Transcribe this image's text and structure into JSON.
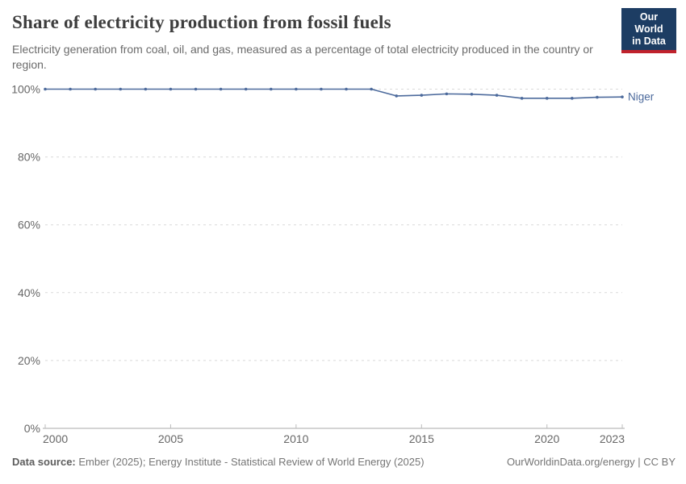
{
  "header": {
    "title": "Share of electricity production from fossil fuels",
    "subtitle": "Electricity generation from coal, oil, and gas, measured as a percentage of total electricity produced in the country or region.",
    "logo": {
      "line1": "Our World",
      "line2": "in Data",
      "bg_color": "#1d3d63",
      "bar_color": "#c0222c"
    }
  },
  "chart_data": {
    "type": "line",
    "title": "Share of electricity production from fossil fuels",
    "xlabel": "",
    "ylabel": "",
    "x": [
      2000,
      2001,
      2002,
      2003,
      2004,
      2005,
      2006,
      2007,
      2008,
      2009,
      2010,
      2011,
      2012,
      2013,
      2014,
      2015,
      2016,
      2017,
      2018,
      2019,
      2020,
      2021,
      2022,
      2023
    ],
    "series": [
      {
        "name": "Niger",
        "color": "#4c6a9c",
        "values": [
          100,
          100,
          100,
          100,
          100,
          100,
          100,
          100,
          100,
          100,
          100,
          100,
          100,
          100,
          98.0,
          98.2,
          98.6,
          98.5,
          98.2,
          97.3,
          97.3,
          97.3,
          97.6,
          97.7
        ]
      }
    ],
    "xlim": [
      2000,
      2023
    ],
    "ylim": [
      0,
      100
    ],
    "x_tick_years": [
      2000,
      2005,
      2010,
      2015,
      2020,
      2023
    ],
    "x_tick_labels": [
      "2000",
      "2005",
      "2010",
      "2015",
      "2020",
      "2023"
    ],
    "y_tick_values": [
      0,
      20,
      40,
      60,
      80,
      100
    ],
    "y_tick_labels": [
      "0%",
      "20%",
      "40%",
      "60%",
      "80%",
      "100%"
    ],
    "grid": "horizontal-dashed",
    "legend": "series-end-label",
    "colors": {
      "gridline": "#d9d9d9",
      "axis_line": "#a8a8a8",
      "tick_mark": "#bcbcbc",
      "tick_label": "#676767"
    }
  },
  "footer": {
    "datasource_label": "Data source:",
    "datasource_text": " Ember (2025); Energy Institute - Statistical Review of World Energy (2025)",
    "credit": "OurWorldinData.org/energy | CC BY"
  }
}
